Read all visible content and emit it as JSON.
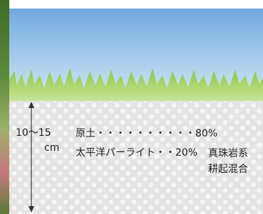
{
  "depth": {
    "range": "10〜15",
    "unit": "cm"
  },
  "mix": [
    {
      "label": "原土・・・・・・・・・・80%"
    },
    {
      "label": "太平洋パーライト・・20%"
    }
  ],
  "method": [
    "真珠岩系",
    "耕起混合"
  ]
}
